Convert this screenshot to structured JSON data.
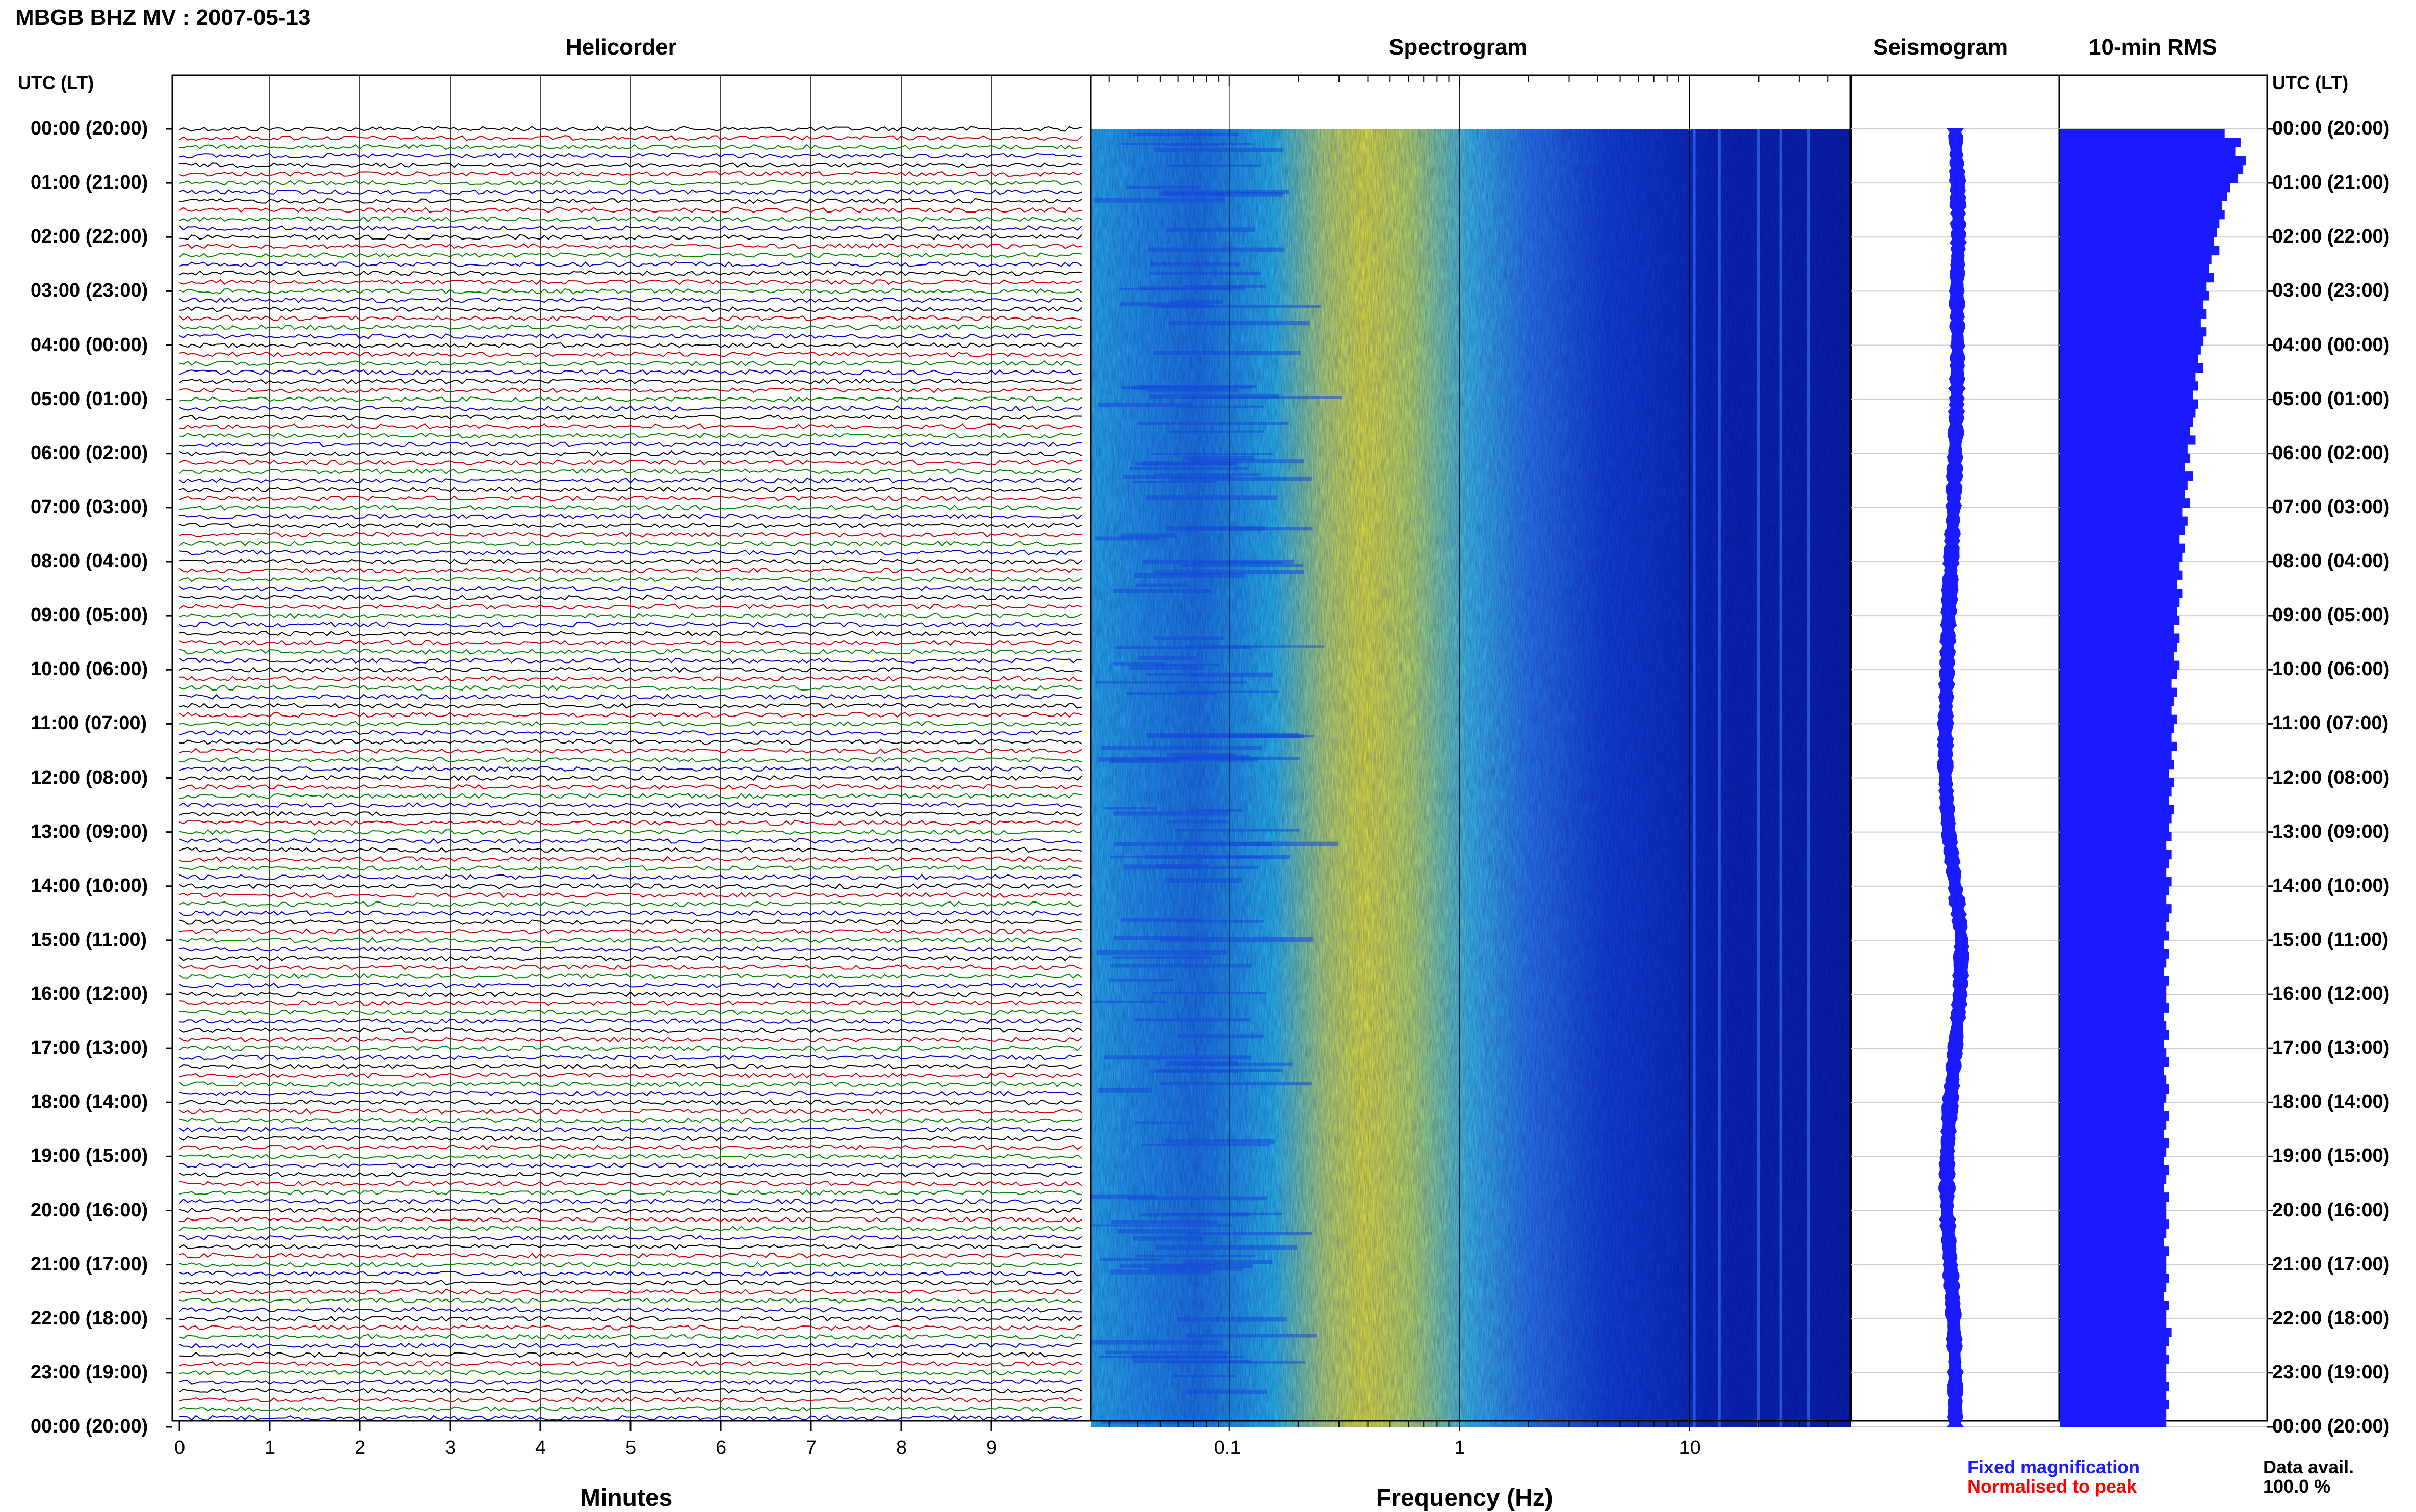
{
  "header": {
    "station_title": "MBGB BHZ MV : 2007-05-13",
    "utc_left": "UTC (LT)",
    "utc_right": "UTC (LT)"
  },
  "panels": {
    "helicorder": "Helicorder",
    "spectrogram": "Spectrogram",
    "seismogram": "Seismogram",
    "rms": "10-min RMS"
  },
  "axes": {
    "minutes_label": "Minutes",
    "frequency_label": "Frequency (Hz)",
    "minute_ticks": [
      "0",
      "1",
      "2",
      "3",
      "4",
      "5",
      "6",
      "7",
      "8",
      "9"
    ],
    "frequency_ticks": [
      "0.1",
      "1",
      "10"
    ]
  },
  "legend": {
    "fixed": "Fixed magnification",
    "normalised": "Normalised to peak",
    "fixed_color": "#1a1aff",
    "normalised_color": "#ff0000"
  },
  "availability": {
    "label": "Data avail.",
    "value": "100.0 %"
  },
  "chart_data": {
    "type": "heatmap",
    "title": "MBGB BHZ MV : 2007-05-13",
    "time_labels": [
      "00:00 (20:00)",
      "01:00 (21:00)",
      "02:00 (22:00)",
      "03:00 (23:00)",
      "04:00 (00:00)",
      "05:00 (01:00)",
      "06:00 (02:00)",
      "07:00 (03:00)",
      "08:00 (04:00)",
      "09:00 (05:00)",
      "10:00 (06:00)",
      "11:00 (07:00)",
      "12:00 (08:00)",
      "13:00 (09:00)",
      "14:00 (10:00)",
      "15:00 (11:00)",
      "16:00 (12:00)",
      "17:00 (13:00)",
      "18:00 (14:00)",
      "19:00 (15:00)",
      "20:00 (16:00)",
      "21:00 (17:00)",
      "22:00 (18:00)",
      "23:00 (19:00)",
      "00:00 (20:00)"
    ],
    "helicorder_colors": [
      "#000000",
      "#cc0000",
      "#008800",
      "#0000cc"
    ],
    "helicorder_xlim": [
      0,
      10
    ],
    "spectrogram_xlim": [
      0.025,
      50
    ],
    "spectrogram_xscale": "log",
    "spectrogram_peak_band_hz": [
      0.2,
      0.6
    ],
    "rms_relative": [
      0.62,
      0.68,
      0.66,
      0.7,
      0.69,
      0.67,
      0.64,
      0.63,
      0.61,
      0.62,
      0.6,
      0.59,
      0.58,
      0.6,
      0.57,
      0.56,
      0.58,
      0.55,
      0.56,
      0.54,
      0.55,
      0.53,
      0.55,
      0.54,
      0.53,
      0.52,
      0.54,
      0.51,
      0.52,
      0.5,
      0.52,
      0.51,
      0.5,
      0.49,
      0.51,
      0.48,
      0.49,
      0.47,
      0.5,
      0.48,
      0.47,
      0.49,
      0.46,
      0.48,
      0.47,
      0.45,
      0.47,
      0.46,
      0.45,
      0.46,
      0.44,
      0.46,
      0.45,
      0.44,
      0.45,
      0.43,
      0.45,
      0.44,
      0.43,
      0.45,
      0.44,
      0.42,
      0.44,
      0.43,
      0.42,
      0.44,
      0.43,
      0.42,
      0.44,
      0.42,
      0.43,
      0.41,
      0.43,
      0.42,
      0.41,
      0.43,
      0.42,
      0.41,
      0.42,
      0.4,
      0.42,
      0.41,
      0.4,
      0.42,
      0.41,
      0.4,
      0.42,
      0.41,
      0.4,
      0.41,
      0.39,
      0.41,
      0.4,
      0.39,
      0.41,
      0.4,
      0.4,
      0.41,
      0.39,
      0.4,
      0.41,
      0.39,
      0.4,
      0.41,
      0.39,
      0.4,
      0.41,
      0.4,
      0.39,
      0.41,
      0.4,
      0.39,
      0.41,
      0.4,
      0.39,
      0.41,
      0.4,
      0.39,
      0.41,
      0.4,
      0.4,
      0.41,
      0.4,
      0.39,
      0.41,
      0.4,
      0.4,
      0.41,
      0.4,
      0.39,
      0.41,
      0.4,
      0.4,
      0.42,
      0.41,
      0.4,
      0.41,
      0.4,
      0.4,
      0.41,
      0.4,
      0.41,
      0.4,
      0.4
    ],
    "seismogram_offset": [
      0.0,
      0.03,
      0.04,
      0.02,
      0.03,
      0.02,
      0.0,
      -0.02,
      -0.05,
      -0.08,
      -0.1,
      -0.12,
      -0.12,
      -0.08,
      0.0,
      0.08,
      0.06,
      0.0,
      -0.06,
      -0.1,
      -0.1,
      -0.06,
      -0.02,
      0.0,
      0.0
    ]
  }
}
